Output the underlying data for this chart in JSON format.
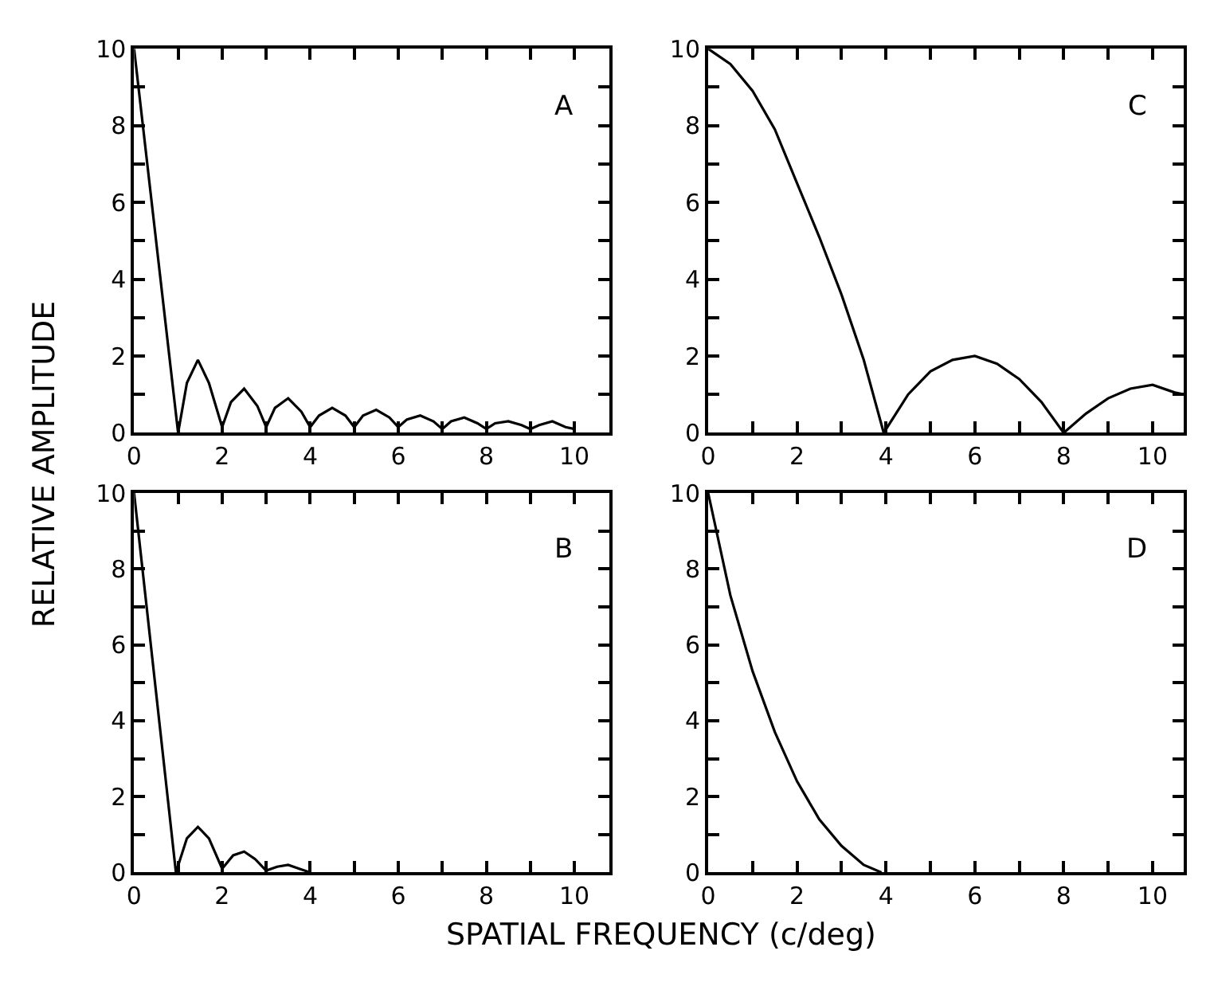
{
  "chart_data": [
    {
      "type": "line",
      "ylabel": "RELATIVE AMPLITUDE",
      "annotations": [
        "A"
      ],
      "xlim": [
        0,
        10.8
      ],
      "ylim": [
        0,
        10
      ],
      "xticks": [
        0,
        {
          "value": 1,
          "label": null
        },
        2,
        {
          "value": 3,
          "label": null
        },
        4,
        {
          "value": 5,
          "label": null
        },
        6,
        {
          "value": 7,
          "label": null
        },
        8,
        {
          "value": 9,
          "label": null
        },
        10
      ],
      "yticks": [
        0,
        {
          "value": 1,
          "label": null
        },
        2,
        {
          "value": 3,
          "label": null
        },
        4,
        {
          "value": 5,
          "label": null
        },
        6,
        {
          "value": 7,
          "label": null
        },
        8,
        {
          "value": 9,
          "label": null
        },
        10
      ],
      "marker": "none",
      "line_style": "solid",
      "series": [
        {
          "color": "#000000",
          "x": [
            0,
            1,
            1.2,
            1.45,
            1.7,
            2,
            2.2,
            2.5,
            2.8,
            3,
            3.2,
            3.5,
            3.8,
            4,
            4.2,
            4.5,
            4.8,
            5,
            5.2,
            5.5,
            5.8,
            6,
            6.2,
            6.5,
            6.8,
            7,
            7.2,
            7.5,
            7.8,
            8,
            8.2,
            8.5,
            8.8,
            9,
            9.2,
            9.5,
            9.8,
            10
          ],
          "values": [
            10,
            0,
            1.3,
            1.9,
            1.3,
            0.15,
            0.8,
            1.15,
            0.7,
            0.15,
            0.65,
            0.9,
            0.55,
            0.15,
            0.45,
            0.65,
            0.45,
            0.15,
            0.45,
            0.6,
            0.4,
            0.15,
            0.35,
            0.45,
            0.3,
            0.1,
            0.3,
            0.4,
            0.25,
            0.1,
            0.25,
            0.3,
            0.2,
            0.1,
            0.2,
            0.3,
            0.15,
            0.1
          ]
        }
      ]
    },
    {
      "type": "line",
      "annotations": [
        "C"
      ],
      "xlim": [
        0,
        10.7
      ],
      "ylim": [
        0,
        10
      ],
      "xticks": [
        0,
        {
          "value": 1,
          "label": null
        },
        2,
        {
          "value": 3,
          "label": null
        },
        4,
        {
          "value": 5,
          "label": null
        },
        6,
        {
          "value": 7,
          "label": null
        },
        8,
        {
          "value": 9,
          "label": null
        },
        10
      ],
      "yticks": [
        0,
        {
          "value": 1,
          "label": null
        },
        2,
        {
          "value": 3,
          "label": null
        },
        4,
        {
          "value": 5,
          "label": null
        },
        6,
        {
          "value": 7,
          "label": null
        },
        8,
        {
          "value": 9,
          "label": null
        },
        10
      ],
      "marker": "none",
      "line_style": "solid",
      "series": [
        {
          "color": "#000000",
          "x": [
            0,
            0.5,
            1,
            1.5,
            2,
            2.5,
            3,
            3.5,
            3.95,
            4.5,
            5,
            5.5,
            6,
            6.5,
            7,
            7.5,
            8,
            8.5,
            9,
            9.5,
            10,
            10.5,
            10.7
          ],
          "values": [
            10,
            9.6,
            8.9,
            7.9,
            6.5,
            5.1,
            3.6,
            1.9,
            0,
            1.0,
            1.6,
            1.9,
            2.0,
            1.8,
            1.4,
            0.8,
            0,
            0.5,
            0.9,
            1.15,
            1.25,
            1.05,
            1.0
          ]
        }
      ]
    },
    {
      "type": "line",
      "xlabel": "SPATIAL FREQUENCY (c/deg)",
      "annotations": [
        "B"
      ],
      "xlim": [
        0,
        10.8
      ],
      "ylim": [
        0,
        10
      ],
      "xticks": [
        0,
        {
          "value": 1,
          "label": null
        },
        2,
        {
          "value": 3,
          "label": null
        },
        4,
        {
          "value": 5,
          "label": null
        },
        6,
        {
          "value": 7,
          "label": null
        },
        8,
        {
          "value": 9,
          "label": null
        },
        10
      ],
      "yticks": [
        0,
        {
          "value": 1,
          "label": null
        },
        2,
        {
          "value": 3,
          "label": null
        },
        4,
        {
          "value": 5,
          "label": null
        },
        6,
        {
          "value": 7,
          "label": null
        },
        8,
        {
          "value": 9,
          "label": null
        },
        10
      ],
      "marker": "none",
      "line_style": "solid",
      "series": [
        {
          "color": "#000000",
          "x": [
            0,
            0.95,
            1.2,
            1.45,
            1.7,
            2,
            2.25,
            2.5,
            2.75,
            3,
            3.25,
            3.5,
            3.75,
            4
          ],
          "values": [
            10,
            0,
            0.9,
            1.2,
            0.9,
            0.1,
            0.45,
            0.55,
            0.35,
            0.05,
            0.15,
            0.2,
            0.1,
            0
          ]
        }
      ]
    },
    {
      "type": "line",
      "annotations": [
        "D"
      ],
      "xlim": [
        0,
        10.7
      ],
      "ylim": [
        0,
        10
      ],
      "xticks": [
        0,
        {
          "value": 1,
          "label": null
        },
        2,
        {
          "value": 3,
          "label": null
        },
        4,
        {
          "value": 5,
          "label": null
        },
        6,
        {
          "value": 7,
          "label": null
        },
        8,
        {
          "value": 9,
          "label": null
        },
        10
      ],
      "yticks": [
        0,
        {
          "value": 1,
          "label": null
        },
        2,
        {
          "value": 3,
          "label": null
        },
        4,
        {
          "value": 5,
          "label": null
        },
        6,
        {
          "value": 7,
          "label": null
        },
        8,
        {
          "value": 9,
          "label": null
        },
        10
      ],
      "marker": "none",
      "line_style": "solid",
      "series": [
        {
          "color": "#000000",
          "x": [
            0,
            0.5,
            1,
            1.5,
            2,
            2.5,
            3,
            3.5,
            3.9
          ],
          "values": [
            10,
            7.3,
            5.3,
            3.7,
            2.4,
            1.4,
            0.7,
            0.2,
            0
          ]
        }
      ]
    }
  ]
}
